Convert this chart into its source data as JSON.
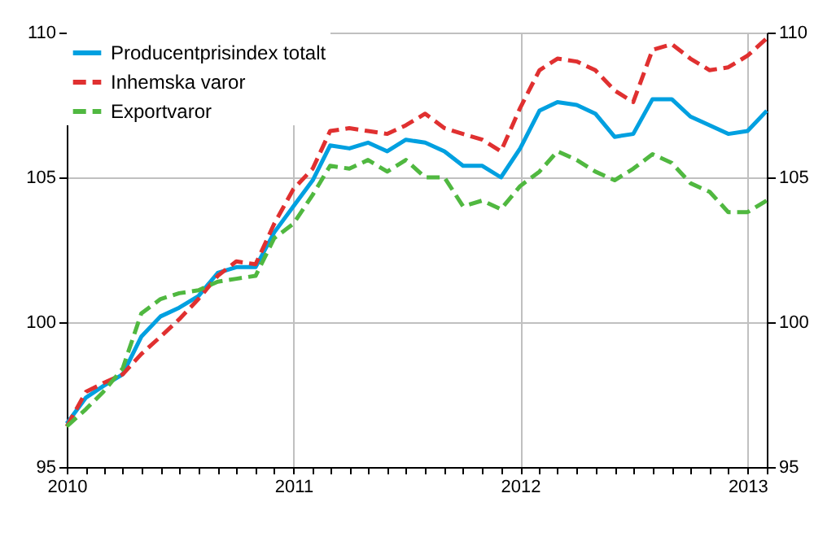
{
  "chart_data": {
    "type": "line",
    "x": [
      "2010-01",
      "2010-02",
      "2010-03",
      "2010-04",
      "2010-05",
      "2010-06",
      "2010-07",
      "2010-08",
      "2010-09",
      "2010-10",
      "2010-11",
      "2010-12",
      "2011-01",
      "2011-02",
      "2011-03",
      "2011-04",
      "2011-05",
      "2011-06",
      "2011-07",
      "2011-08",
      "2011-09",
      "2011-10",
      "2011-11",
      "2011-12",
      "2012-01",
      "2012-02",
      "2012-03",
      "2012-04",
      "2012-05",
      "2012-06",
      "2012-07",
      "2012-08",
      "2012-09",
      "2012-10",
      "2012-11",
      "2012-12",
      "2013-01",
      "2013-02"
    ],
    "series": [
      {
        "name": "Producentprisindex totalt",
        "color": "#00a0e0",
        "line_style": "solid",
        "values": [
          96.5,
          97.4,
          97.8,
          98.2,
          99.5,
          100.2,
          100.5,
          100.9,
          101.7,
          101.9,
          101.9,
          103.1,
          104.0,
          104.9,
          106.1,
          106.0,
          106.2,
          105.9,
          106.3,
          106.2,
          105.9,
          105.4,
          105.4,
          105.0,
          106.0,
          107.3,
          107.6,
          107.5,
          107.2,
          106.4,
          106.5,
          107.7,
          107.7,
          107.1,
          106.8,
          106.5,
          106.6,
          107.3
        ]
      },
      {
        "name": "Inhemska varor",
        "color": "#e03030",
        "line_style": "dashed",
        "values": [
          96.4,
          97.6,
          97.9,
          98.2,
          98.9,
          99.5,
          100.1,
          100.8,
          101.6,
          102.1,
          102.0,
          103.4,
          104.6,
          105.3,
          106.6,
          106.7,
          106.6,
          106.5,
          106.8,
          107.2,
          106.7,
          106.5,
          106.3,
          105.9,
          107.4,
          108.7,
          109.1,
          109.0,
          108.7,
          108.0,
          107.6,
          109.4,
          109.6,
          109.1,
          108.7,
          108.8,
          109.2,
          109.8
        ]
      },
      {
        "name": "Exportvaror",
        "color": "#50b840",
        "line_style": "dashed",
        "values": [
          96.4,
          97.0,
          97.6,
          98.4,
          100.3,
          100.8,
          101.0,
          101.1,
          101.4,
          101.5,
          101.6,
          102.9,
          103.4,
          104.4,
          105.4,
          105.3,
          105.6,
          105.2,
          105.6,
          105.0,
          105.0,
          104.0,
          104.2,
          103.9,
          104.7,
          105.2,
          105.9,
          105.6,
          105.2,
          104.9,
          105.3,
          105.8,
          105.5,
          104.8,
          104.5,
          103.8,
          103.8,
          104.2
        ]
      }
    ],
    "xlim": [
      "2010-01",
      "2013-02"
    ],
    "xticks": [
      "2010",
      {
        "value": "2010-02",
        "label": null
      },
      {
        "value": "2010-03",
        "label": null
      },
      {
        "value": "2010-04",
        "label": null
      },
      {
        "value": "2010-05",
        "label": null
      },
      {
        "value": "2010-06",
        "label": null
      },
      {
        "value": "2010-07",
        "label": null
      },
      {
        "value": "2010-08",
        "label": null
      },
      {
        "value": "2010-09",
        "label": null
      },
      {
        "value": "2010-10",
        "label": null
      },
      {
        "value": "2010-11",
        "label": null
      },
      {
        "value": "2010-12",
        "label": null
      },
      "2011",
      {
        "value": "2011-02",
        "label": null
      },
      {
        "value": "2011-03",
        "label": null
      },
      {
        "value": "2011-04",
        "label": null
      },
      {
        "value": "2011-05",
        "label": null
      },
      {
        "value": "2011-06",
        "label": null
      },
      {
        "value": "2011-07",
        "label": null
      },
      {
        "value": "2011-08",
        "label": null
      },
      {
        "value": "2011-09",
        "label": null
      },
      {
        "value": "2011-10",
        "label": null
      },
      {
        "value": "2011-11",
        "label": null
      },
      {
        "value": "2011-12",
        "label": null
      },
      "2012",
      {
        "value": "2012-02",
        "label": null
      },
      {
        "value": "2012-03",
        "label": null
      },
      {
        "value": "2012-04",
        "label": null
      },
      {
        "value": "2012-05",
        "label": null
      },
      {
        "value": "2012-06",
        "label": null
      },
      {
        "value": "2012-07",
        "label": null
      },
      {
        "value": "2012-08",
        "label": null
      },
      {
        "value": "2012-09",
        "label": null
      },
      {
        "value": "2012-10",
        "label": null
      },
      {
        "value": "2012-11",
        "label": null
      },
      {
        "value": "2012-12",
        "label": null
      },
      "2013",
      {
        "value": "2013-02",
        "label": null
      }
    ],
    "ylim": [
      95,
      110
    ],
    "yticks": [
      95,
      100,
      105,
      110
    ],
    "y2lim": [
      95,
      110
    ],
    "y2ticks": [
      95,
      100,
      105,
      110
    ],
    "grid": true,
    "legend": "top left"
  }
}
